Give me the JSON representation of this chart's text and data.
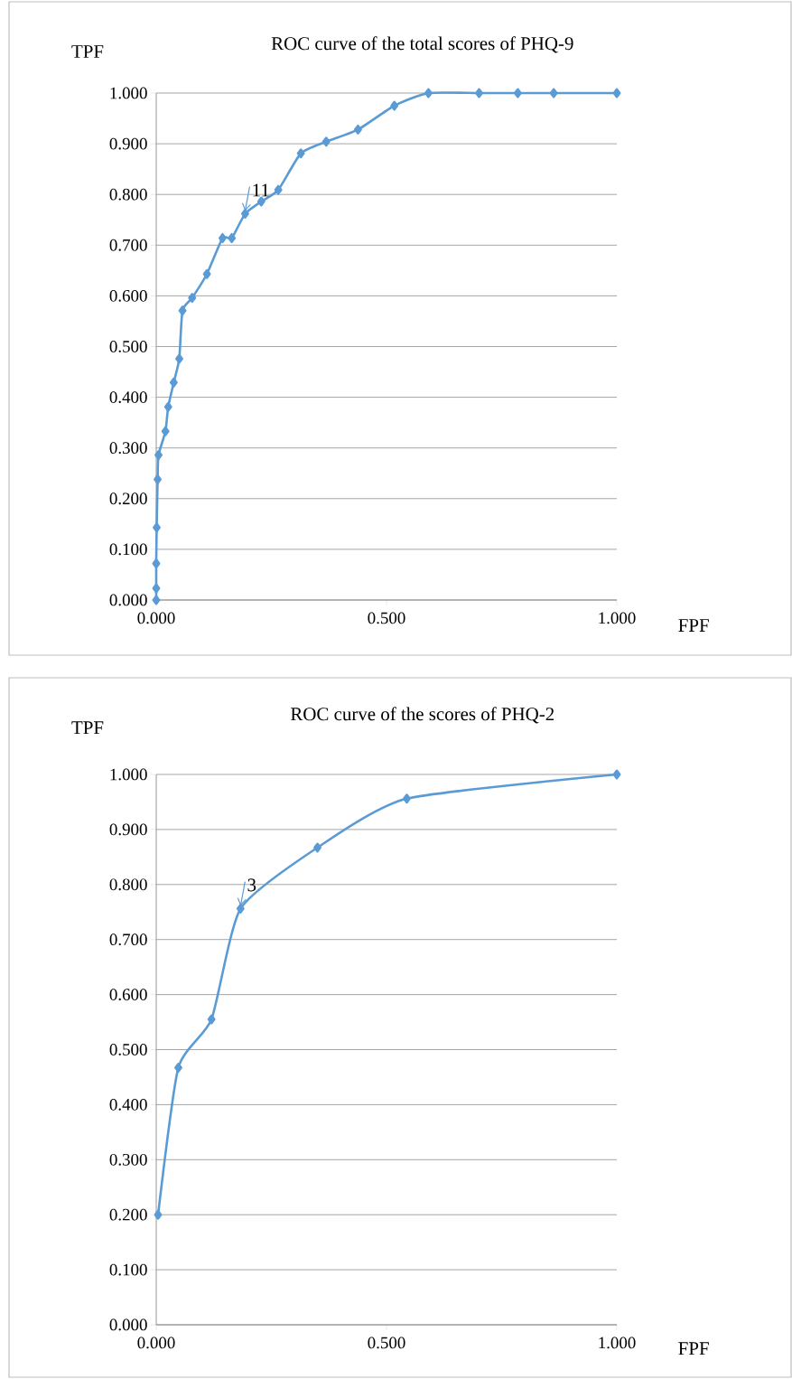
{
  "chart_data": [
    {
      "type": "line",
      "title": "ROC curve of  the total scores of PHQ-9",
      "xlabel": "FPF",
      "ylabel": "TPF",
      "color": "#5b9bd5",
      "marker": "diamond",
      "grid": "y",
      "x": [
        0,
        0,
        0,
        0.001,
        0.003,
        0.005,
        0.02,
        0.026,
        0.038,
        0.05,
        0.057,
        0.078,
        0.11,
        0.144,
        0.164,
        0.193,
        0.228,
        0.265,
        0.314,
        0.369,
        0.438,
        0.517,
        0.591,
        0.701,
        0.785,
        0.863,
        1.0
      ],
      "values": [
        0,
        0.023,
        0.072,
        0.143,
        0.238,
        0.286,
        0.333,
        0.381,
        0.429,
        0.476,
        0.571,
        0.596,
        0.643,
        0.714,
        0.714,
        0.762,
        0.786,
        0.809,
        0.881,
        0.904,
        0.928,
        0.975,
        1.0,
        1.0,
        1.0,
        1.0,
        1.0
      ],
      "xlim": [
        0,
        1
      ],
      "ylim": [
        0,
        1
      ],
      "xticks": [
        {
          "value": 0,
          "label": "0.000"
        },
        {
          "value": 0.5,
          "label": "0.500"
        },
        {
          "value": 1,
          "label": "1.000"
        }
      ],
      "yticks": [
        {
          "value": 0,
          "label": "0.000"
        },
        {
          "value": 0.1,
          "label": "0.100"
        },
        {
          "value": 0.2,
          "label": "0.200"
        },
        {
          "value": 0.3,
          "label": "0.300"
        },
        {
          "value": 0.4,
          "label": "0.400"
        },
        {
          "value": 0.5,
          "label": "0.500"
        },
        {
          "value": 0.6,
          "label": "0.600"
        },
        {
          "value": 0.7,
          "label": "0.700"
        },
        {
          "value": 0.8,
          "label": "0.800"
        },
        {
          "value": 0.9,
          "label": "0.900"
        },
        {
          "value": 1,
          "label": "1.000"
        }
      ],
      "annotations": [
        {
          "text": "11",
          "x": 0.193,
          "y": 0.762
        }
      ]
    },
    {
      "type": "line",
      "title": "ROC curve of  the  scores of PHQ-2",
      "xlabel": "FPF",
      "ylabel": "TPF",
      "color": "#5b9bd5",
      "marker": "diamond",
      "grid": "y",
      "x": [
        0.004,
        0.048,
        0.12,
        0.183,
        0.35,
        0.544,
        1.0
      ],
      "values": [
        0.2,
        0.467,
        0.555,
        0.756,
        0.867,
        0.956,
        1.0
      ],
      "xlim": [
        0,
        1
      ],
      "ylim": [
        0,
        1
      ],
      "xticks": [
        {
          "value": 0,
          "label": "0.000"
        },
        {
          "value": 0.5,
          "label": "0.500"
        },
        {
          "value": 1,
          "label": "1.000"
        }
      ],
      "yticks": [
        {
          "value": 0,
          "label": "0.000"
        },
        {
          "value": 0.1,
          "label": "0.100"
        },
        {
          "value": 0.2,
          "label": "0.200"
        },
        {
          "value": 0.3,
          "label": "0.300"
        },
        {
          "value": 0.4,
          "label": "0.400"
        },
        {
          "value": 0.5,
          "label": "0.500"
        },
        {
          "value": 0.6,
          "label": "0.600"
        },
        {
          "value": 0.7,
          "label": "0.700"
        },
        {
          "value": 0.8,
          "label": "0.800"
        },
        {
          "value": 0.9,
          "label": "0.900"
        },
        {
          "value": 1,
          "label": "1.000"
        }
      ],
      "annotations": [
        {
          "text": "3",
          "x": 0.183,
          "y": 0.756
        }
      ]
    }
  ]
}
